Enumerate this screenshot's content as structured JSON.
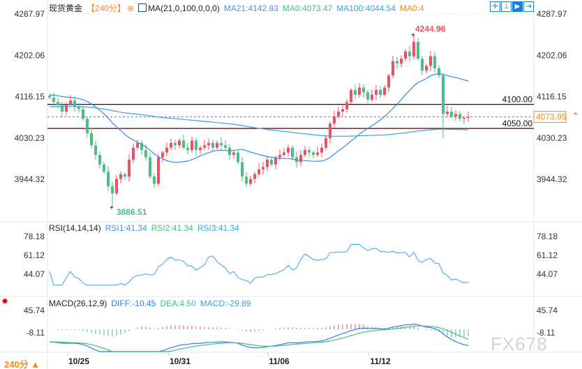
{
  "header": {
    "symbol": "现货黄金",
    "period": "【240分】",
    "indicator": "MA(21,0,100,0,0,0)",
    "ma21": "MA21:4142.83",
    "ma0a": "MA0:4073.47",
    "ma100": "MA100:4044.54",
    "ma0b": "MA0:4"
  },
  "toolbar": {
    "icons": [
      "crosshair-icon",
      "vertical-range-icon",
      "play-range-icon",
      "exit-range-icon"
    ]
  },
  "price_axis": {
    "labels": [
      "4287.97",
      "4202.06",
      "4116.15",
      "4030.23",
      "3944.32"
    ],
    "current": "4073.95"
  },
  "lines": {
    "upper": "4100.00",
    "lower": "4050.00"
  },
  "annotations": {
    "high": "4244.96",
    "low": "3886.51"
  },
  "rsi": {
    "title": "RSI(14,14,14)",
    "rsi1": "RSI1:41.34",
    "rsi2": "RSI2:41.34",
    "rsi3": "RSI3:41.34",
    "labels": [
      "78.18",
      "61.12",
      "44.07"
    ]
  },
  "macd": {
    "title": "MACD(26,12,9)",
    "diff": "DIFF:-10.45",
    "dea": "DEA:4.50",
    "macd": "MACD:-29.89",
    "labels": [
      "45.74",
      "-8.11"
    ]
  },
  "dates": [
    "10/25",
    "10/31",
    "11/06",
    "11/12"
  ],
  "period_button": "240分 ▲",
  "watermark": "FX678",
  "colors": {
    "up": "#ef4f60",
    "down": "#4fbd86",
    "ma21": "#2f8bea",
    "ma100": "#32a4e8",
    "accent": "#f08a1c"
  },
  "chart_data": {
    "type": "candlestick",
    "ylim": [
      3886.51,
      4287.97
    ],
    "closes": [
      4114,
      4105,
      4098,
      4085,
      4100,
      4108,
      4095,
      4090,
      4070,
      4040,
      4015,
      3995,
      3975,
      3960,
      3930,
      3915,
      3945,
      3955,
      3950,
      3985,
      4010,
      4020,
      4005,
      3990,
      3950,
      3935,
      3990,
      4000,
      4010,
      4020,
      4015,
      4025,
      4010,
      4005,
      4025,
      4005,
      4010,
      4015,
      4020,
      4010,
      4020,
      4015,
      4010,
      3995,
      4000,
      3980,
      3950,
      3935,
      3945,
      3955,
      3965,
      3970,
      3985,
      3975,
      3990,
      3995,
      4000,
      4010,
      3990,
      3980,
      3995,
      4005,
      4000,
      3995,
      4000,
      4010,
      4030,
      4060,
      4075,
      4085,
      4090,
      4105,
      4130,
      4120,
      4135,
      4125,
      4110,
      4120,
      4130,
      4120,
      4135,
      4160,
      4190,
      4185,
      4195,
      4210,
      4200,
      4230,
      4195,
      4170,
      4180,
      4200,
      4175,
      4160,
      4080,
      4085,
      4075,
      4080,
      4070,
      4072,
      4073.95
    ]
  }
}
